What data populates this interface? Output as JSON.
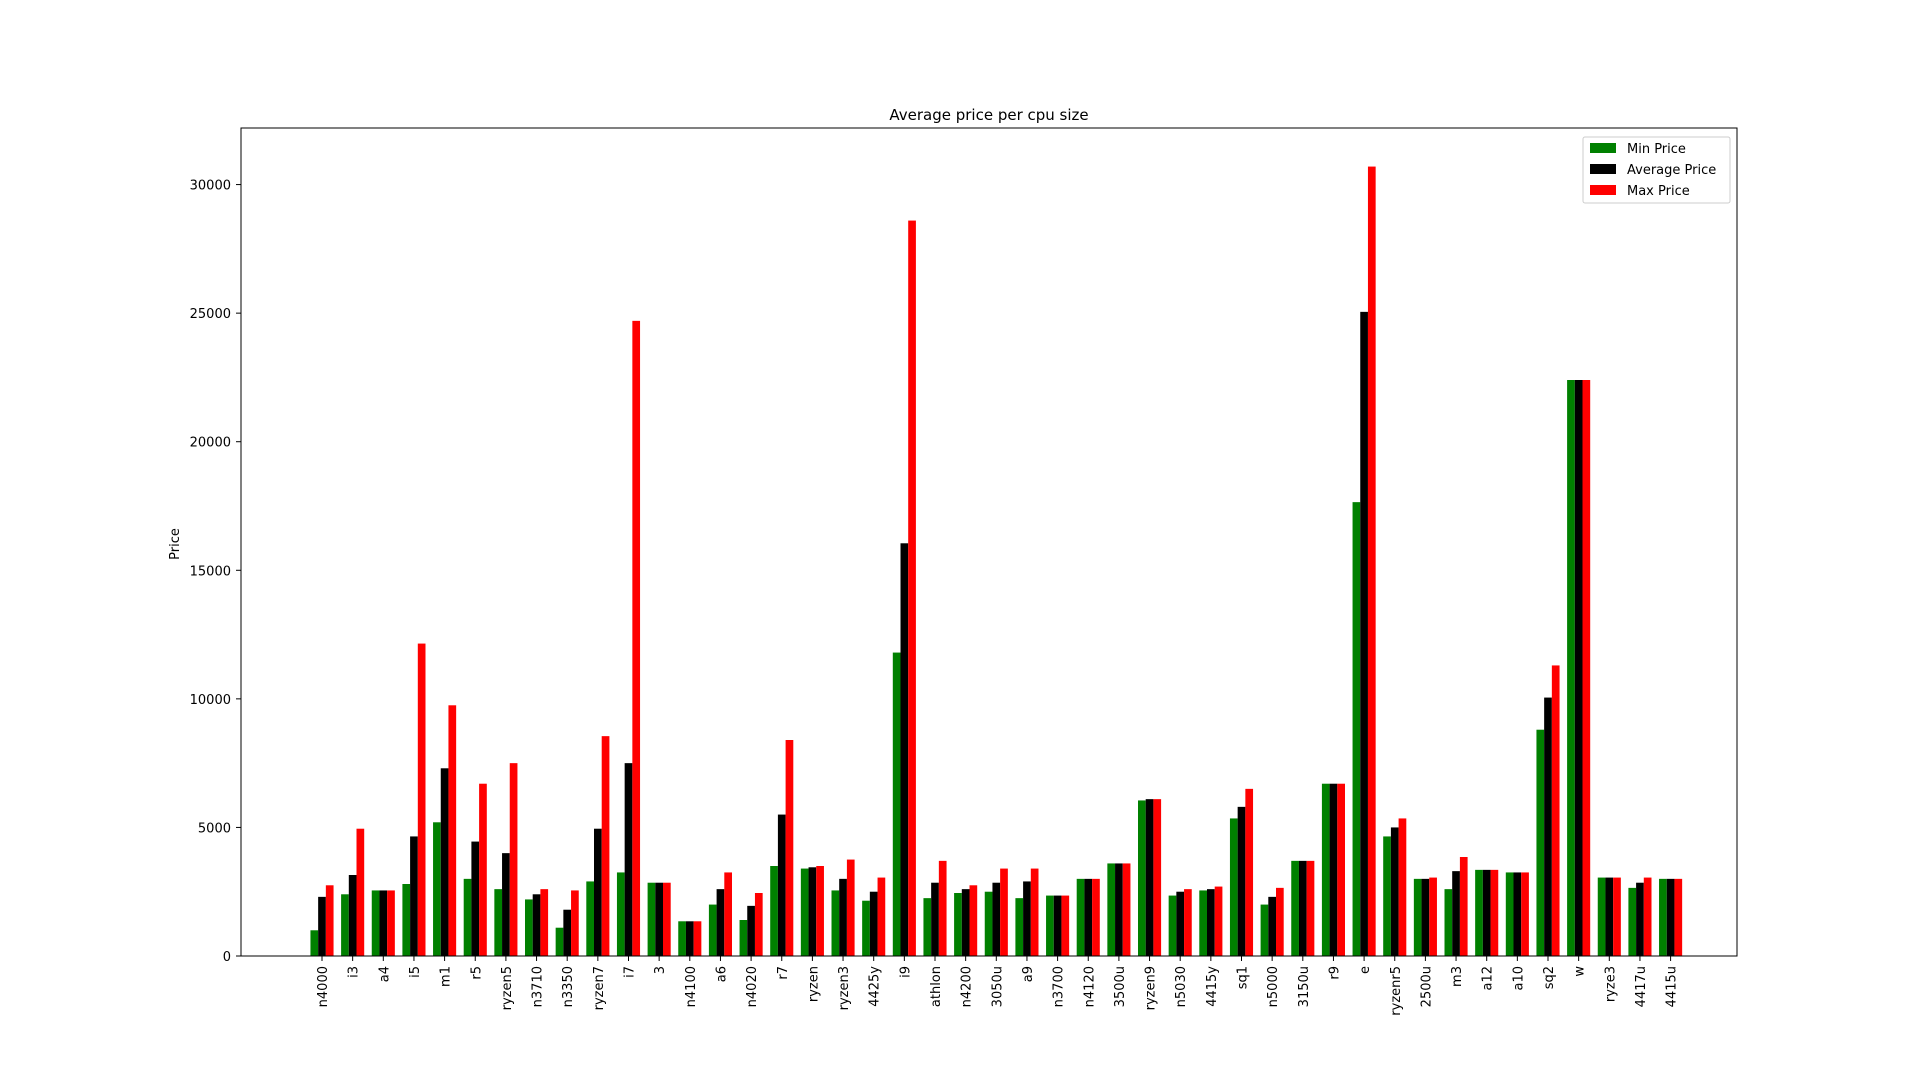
{
  "chart_data": {
    "type": "bar",
    "title": "Average price per cpu size",
    "xlabel": "",
    "ylabel": "Price",
    "ylim": [
      0,
      32200
    ],
    "yticks": [
      0,
      5000,
      10000,
      15000,
      20000,
      25000,
      30000
    ],
    "grid": false,
    "legend": "top-right",
    "categories": [
      "n4000",
      "i3",
      "a4",
      "i5",
      "m1",
      "r5",
      "ryzen5",
      "n3710",
      "n3350",
      "ryzen7",
      "i7",
      "3",
      "n4100",
      "a6",
      "n4020",
      "r7",
      "ryzen",
      "ryzen3",
      "4425y",
      "i9",
      "athlon",
      "n4200",
      "3050u",
      "a9",
      "n3700",
      "n4120",
      "3500u",
      "ryzen9",
      "n5030",
      "4415y",
      "sq1",
      "n5000",
      "3150u",
      "r9",
      "e",
      "ryzenr5",
      "2500u",
      "m3",
      "a12",
      "a10",
      "sq2",
      "w",
      "ryze3",
      "4417u",
      "4415u"
    ],
    "series": [
      {
        "name": "Min Price",
        "color": "#008000",
        "values": [
          1000,
          2400,
          2550,
          2800,
          5200,
          3000,
          2600,
          2200,
          1100,
          2900,
          3250,
          2850,
          1350,
          2000,
          1400,
          3500,
          3400,
          2550,
          2150,
          11800,
          2250,
          2450,
          2500,
          2250,
          2350,
          3000,
          3600,
          6050,
          2350,
          2550,
          5350,
          2000,
          3700,
          6700,
          17650,
          4650,
          3000,
          2600,
          3350,
          3250,
          8800,
          22400,
          3050,
          2650,
          3000
        ]
      },
      {
        "name": "Average Price",
        "color": "#000000",
        "values": [
          2300,
          3150,
          2550,
          4650,
          7300,
          4450,
          4000,
          2400,
          1800,
          4950,
          7500,
          2850,
          1350,
          2600,
          1950,
          5500,
          3450,
          3000,
          2500,
          16050,
          2850,
          2600,
          2850,
          2900,
          2350,
          3000,
          3600,
          6100,
          2500,
          2600,
          5800,
          2300,
          3700,
          6700,
          25050,
          5000,
          3000,
          3300,
          3350,
          3250,
          10050,
          22400,
          3050,
          2850,
          3000
        ]
      },
      {
        "name": "Max Price",
        "color": "#ff0000",
        "values": [
          2750,
          4950,
          2550,
          12150,
          9750,
          6700,
          7500,
          2600,
          2550,
          8550,
          24700,
          2850,
          1350,
          3250,
          2450,
          8400,
          3500,
          3750,
          3050,
          28600,
          3700,
          2750,
          3400,
          3400,
          2350,
          3000,
          3600,
          6100,
          2600,
          2700,
          6500,
          2650,
          3700,
          6700,
          30700,
          5350,
          3050,
          3850,
          3350,
          3250,
          11300,
          22400,
          3050,
          3050,
          3000
        ]
      }
    ]
  }
}
